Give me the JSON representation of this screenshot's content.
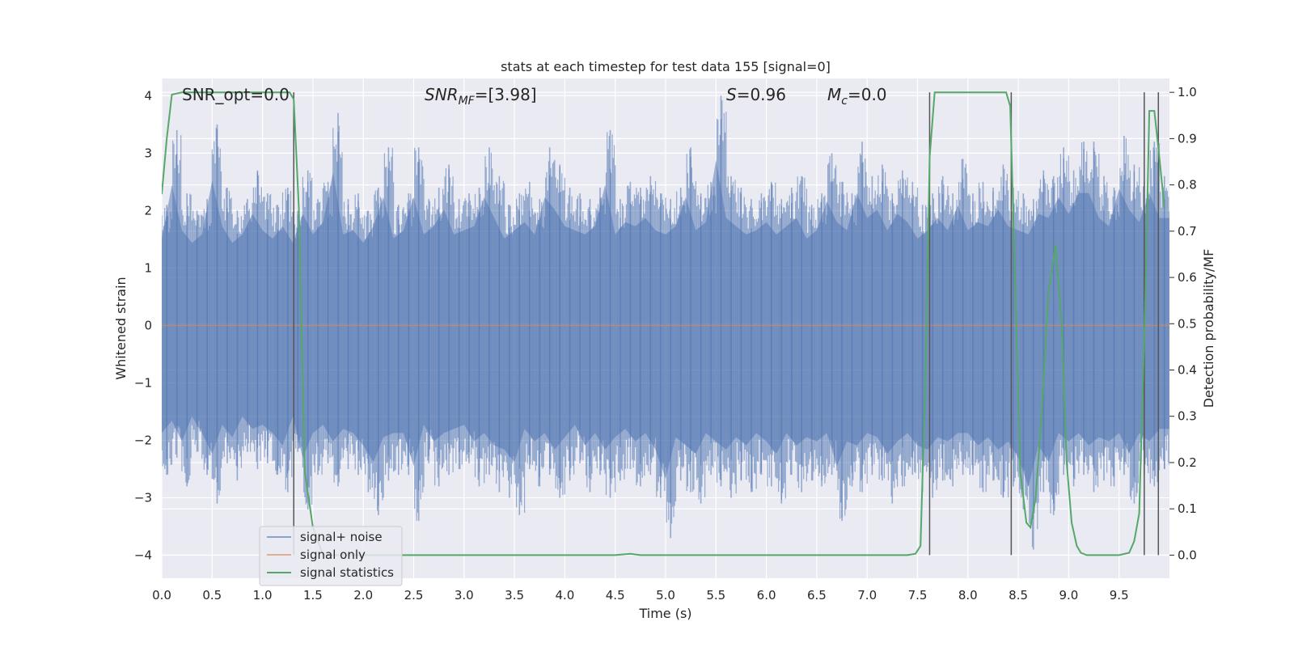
{
  "chart_data": {
    "type": "line",
    "title": "stats at each timestep for test data 155 [signal=0]",
    "xlabel": "Time (s)",
    "ylabel_left": "Whitened strain",
    "ylabel_right": "Detection probability/MF",
    "xlim": [
      0.0,
      10.0
    ],
    "ylim_left": [
      -4.4,
      4.3
    ],
    "ylim_right": [
      -0.05,
      1.03
    ],
    "x_ticks": [
      "0.0",
      "0.5",
      "1.0",
      "1.5",
      "2.0",
      "2.5",
      "3.0",
      "3.5",
      "4.0",
      "4.5",
      "5.0",
      "5.5",
      "6.0",
      "6.5",
      "7.0",
      "7.5",
      "8.0",
      "8.5",
      "9.0",
      "9.5"
    ],
    "x_tick_values": [
      0.0,
      0.5,
      1.0,
      1.5,
      2.0,
      2.5,
      3.0,
      3.5,
      4.0,
      4.5,
      5.0,
      5.5,
      6.0,
      6.5,
      7.0,
      7.5,
      8.0,
      8.5,
      9.0,
      9.5
    ],
    "y_left_ticks": [
      "4",
      "3",
      "2",
      "1",
      "0",
      "−1",
      "−2",
      "−3",
      "−4"
    ],
    "y_left_tick_values": [
      4,
      3,
      2,
      1,
      0,
      -1,
      -2,
      -3,
      -4
    ],
    "y_right_ticks": [
      "1.0",
      "0.9",
      "0.8",
      "0.7",
      "0.6",
      "0.5",
      "0.4",
      "0.3",
      "0.2",
      "0.1",
      "0.0"
    ],
    "y_right_tick_values": [
      1.0,
      0.9,
      0.8,
      0.7,
      0.6,
      0.5,
      0.4,
      0.3,
      0.2,
      0.1,
      0.0
    ],
    "annotations": {
      "snr_opt": "SNR_opt=0.0",
      "snr_mf_name": "SNR",
      "snr_mf_sub": "MF",
      "snr_mf_value": "=[3.98]",
      "s_name": "S",
      "s_value": "=0.96",
      "mc_name": "M",
      "mc_sub": "c",
      "mc_value": "=0.0"
    },
    "legend": {
      "placement": "lower-left",
      "entries": [
        "signal+ noise",
        "signal only",
        "signal statistics"
      ]
    },
    "series": [
      {
        "name": "signal+ noise",
        "axis": "left",
        "color": "#4c72b0",
        "note_envelope": "noise band, approx within [-2.5, 2.5], spikes to about +-4",
        "x": [
          0.0,
          0.1,
          0.2,
          0.3,
          0.4,
          0.5,
          0.6,
          0.7,
          0.8,
          0.9,
          1.0,
          1.1,
          1.2,
          1.3,
          1.4,
          1.5,
          1.6,
          1.7,
          1.8,
          1.9,
          2.0,
          2.1,
          2.2,
          2.3,
          2.4,
          2.5,
          2.6,
          2.7,
          2.8,
          2.9,
          3.0,
          3.1,
          3.2,
          3.3,
          3.4,
          3.5,
          3.6,
          3.7,
          3.8,
          3.9,
          4.0,
          4.1,
          4.2,
          4.3,
          4.4,
          4.5,
          4.6,
          4.7,
          4.8,
          4.9,
          5.0,
          5.1,
          5.2,
          5.3,
          5.4,
          5.5,
          5.6,
          5.7,
          5.8,
          5.9,
          6.0,
          6.1,
          6.2,
          6.3,
          6.4,
          6.5,
          6.6,
          6.7,
          6.8,
          6.9,
          7.0,
          7.1,
          7.2,
          7.3,
          7.4,
          7.5,
          7.6,
          7.7,
          7.8,
          7.9,
          8.0,
          8.1,
          8.2,
          8.3,
          8.4,
          8.5,
          8.6,
          8.7,
          8.8,
          8.9,
          9.0,
          9.1,
          9.2,
          9.3,
          9.4,
          9.5,
          9.6,
          9.7,
          9.8,
          9.9
        ],
        "upper": [
          2.1,
          3.4,
          2.3,
          2.0,
          2.2,
          3.5,
          2.4,
          2.0,
          2.2,
          2.7,
          2.3,
          2.1,
          2.4,
          2.0,
          2.7,
          2.2,
          2.5,
          3.7,
          2.2,
          2.3,
          2.0,
          2.4,
          3.1,
          2.1,
          2.3,
          3.1,
          2.2,
          2.4,
          2.8,
          2.2,
          2.3,
          2.4,
          3.1,
          2.6,
          2.1,
          2.3,
          2.5,
          2.2,
          3.1,
          2.8,
          2.4,
          2.3,
          2.2,
          2.4,
          3.4,
          2.2,
          2.5,
          2.4,
          2.6,
          2.3,
          2.2,
          2.4,
          3.1,
          2.3,
          2.5,
          4.0,
          2.6,
          2.4,
          2.2,
          2.3,
          2.5,
          2.2,
          2.4,
          2.6,
          2.1,
          2.3,
          3.0,
          2.5,
          2.3,
          3.2,
          2.6,
          2.8,
          2.3,
          2.7,
          2.5,
          2.1,
          2.3,
          2.6,
          2.3,
          2.9,
          2.3,
          2.5,
          2.4,
          2.8,
          2.4,
          2.3,
          2.2,
          2.7,
          2.6,
          3.1,
          2.7,
          3.2,
          3.2,
          2.6,
          2.4,
          3.3,
          2.8,
          2.5,
          3.2,
          2.6
        ],
        "lower": [
          -2.6,
          -2.3,
          -2.8,
          -2.2,
          -2.6,
          -3.1,
          -2.4,
          -2.7,
          -2.2,
          -2.5,
          -2.4,
          -2.6,
          -2.9,
          -2.2,
          -3.2,
          -2.6,
          -2.4,
          -2.8,
          -2.5,
          -2.6,
          -2.9,
          -3.3,
          -2.7,
          -2.6,
          -2.6,
          -3.4,
          -2.4,
          -2.8,
          -2.6,
          -2.5,
          -2.4,
          -2.8,
          -2.6,
          -2.9,
          -3.0,
          -3.3,
          -2.5,
          -2.8,
          -2.6,
          -3.0,
          -2.7,
          -2.4,
          -2.9,
          -2.6,
          -3.0,
          -2.7,
          -2.5,
          -2.8,
          -2.6,
          -3.0,
          -3.7,
          -2.7,
          -2.9,
          -3.1,
          -2.6,
          -2.8,
          -3.0,
          -2.7,
          -2.9,
          -2.6,
          -2.8,
          -3.1,
          -2.6,
          -2.9,
          -2.7,
          -2.8,
          -2.6,
          -3.4,
          -2.8,
          -2.9,
          -2.6,
          -2.7,
          -3.1,
          -2.8,
          -2.6,
          -2.9,
          -3.0,
          -2.7,
          -2.8,
          -2.6,
          -2.6,
          -2.9,
          -2.7,
          -3.0,
          -2.8,
          -3.2,
          -3.9,
          -2.9,
          -3.3,
          -2.6,
          -2.8,
          -2.6,
          -2.9,
          -2.7,
          -2.8,
          -2.6,
          -3.1,
          -2.6,
          -2.8,
          -2.5
        ]
      },
      {
        "name": "signal only",
        "axis": "left",
        "color": "#dd8452",
        "x": [
          0.0,
          10.0
        ],
        "y": [
          0.0,
          0.0
        ]
      },
      {
        "name": "signal statistics",
        "axis": "right",
        "color": "#55a868",
        "x": [
          0.0,
          0.05,
          0.1,
          0.2,
          0.4,
          0.8,
          1.2,
          1.27,
          1.31,
          1.36,
          1.42,
          1.5,
          1.6,
          2.0,
          3.0,
          4.0,
          4.5,
          4.65,
          4.75,
          5.0,
          6.0,
          7.0,
          7.4,
          7.48,
          7.53,
          7.58,
          7.62,
          7.67,
          7.72,
          8.0,
          8.3,
          8.38,
          8.42,
          8.47,
          8.52,
          8.58,
          8.62,
          8.67,
          8.73,
          8.8,
          8.87,
          8.93,
          8.98,
          9.03,
          9.08,
          9.12,
          9.18,
          9.3,
          9.5,
          9.6,
          9.65,
          9.7,
          9.76,
          9.8,
          9.85,
          9.9,
          9.95
        ],
        "y": [
          0.78,
          0.9,
          0.995,
          1.0,
          1.0,
          1.0,
          1.0,
          1.0,
          0.985,
          0.75,
          0.18,
          0.06,
          0.0,
          0.0,
          0.0,
          0.0,
          0.0,
          0.003,
          0.0,
          0.0,
          0.0,
          0.0,
          0.0,
          0.003,
          0.02,
          0.4,
          0.86,
          1.0,
          1.0,
          1.0,
          1.0,
          1.0,
          0.97,
          0.58,
          0.18,
          0.07,
          0.06,
          0.12,
          0.3,
          0.57,
          0.67,
          0.5,
          0.2,
          0.07,
          0.02,
          0.005,
          0.0,
          0.0,
          0.0,
          0.005,
          0.03,
          0.09,
          0.55,
          0.96,
          0.96,
          0.86,
          0.75
        ]
      }
    ],
    "markers": {
      "color": "#555555",
      "x": [
        1.31,
        7.62,
        8.43,
        9.75,
        9.89
      ],
      "range_right": [
        0.0,
        1.0
      ]
    }
  }
}
